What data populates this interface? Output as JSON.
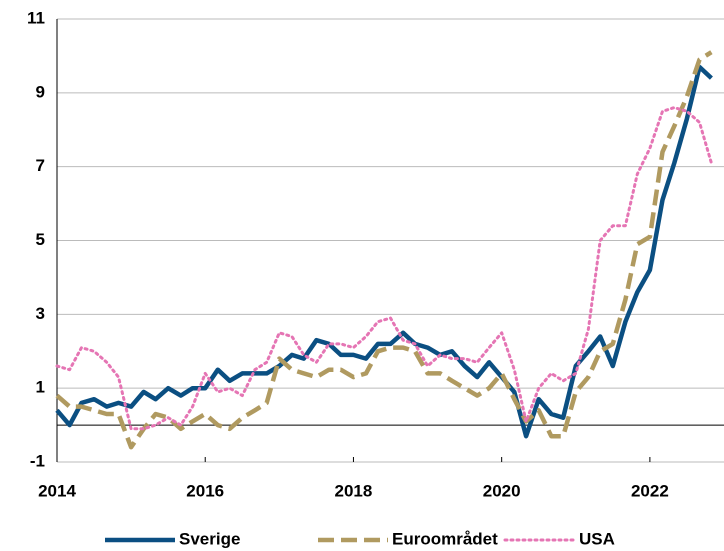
{
  "chart_data": {
    "type": "line",
    "x": [
      2014,
      2014.17,
      2014.33,
      2014.5,
      2014.67,
      2014.83,
      2015,
      2015.17,
      2015.33,
      2015.5,
      2015.67,
      2015.83,
      2016,
      2016.17,
      2016.33,
      2016.5,
      2016.67,
      2016.83,
      2017,
      2017.17,
      2017.33,
      2017.5,
      2017.67,
      2017.83,
      2018,
      2018.17,
      2018.33,
      2018.5,
      2018.67,
      2018.83,
      2019,
      2019.17,
      2019.33,
      2019.5,
      2019.67,
      2019.83,
      2020,
      2020.17,
      2020.33,
      2020.5,
      2020.67,
      2020.83,
      2021,
      2021.17,
      2021.33,
      2021.5,
      2021.67,
      2021.83,
      2022,
      2022.17,
      2022.33,
      2022.5,
      2022.67,
      2022.83
    ],
    "series": [
      {
        "name": "Sverige",
        "color": "#0b4f82",
        "style": "solid",
        "values": [
          0.4,
          0.0,
          0.6,
          0.7,
          0.5,
          0.6,
          0.5,
          0.9,
          0.7,
          1.0,
          0.8,
          1.0,
          1.0,
          1.5,
          1.2,
          1.4,
          1.4,
          1.4,
          1.6,
          1.9,
          1.8,
          2.3,
          2.2,
          1.9,
          1.9,
          1.8,
          2.2,
          2.2,
          2.5,
          2.2,
          2.1,
          1.9,
          2.0,
          1.6,
          1.3,
          1.7,
          1.3,
          0.9,
          -0.3,
          0.7,
          0.3,
          0.2,
          1.6,
          2.0,
          2.4,
          1.6,
          2.8,
          3.6,
          4.2,
          6.1,
          7.1,
          8.3,
          9.7,
          9.4
        ]
      },
      {
        "name": "Euroområdet",
        "color": "#b09a60",
        "style": "dashed",
        "values": [
          0.8,
          0.5,
          0.5,
          0.4,
          0.3,
          0.3,
          -0.6,
          -0.1,
          0.3,
          0.2,
          -0.1,
          0.1,
          0.3,
          0.0,
          -0.1,
          0.2,
          0.4,
          0.6,
          1.8,
          1.5,
          1.4,
          1.3,
          1.5,
          1.5,
          1.3,
          1.4,
          2.0,
          2.1,
          2.1,
          2.0,
          1.4,
          1.4,
          1.2,
          1.0,
          0.8,
          1.0,
          1.4,
          0.7,
          0.1,
          0.4,
          -0.3,
          -0.3,
          0.9,
          1.3,
          2.0,
          2.2,
          3.4,
          4.9,
          5.1,
          7.4,
          8.1,
          8.9,
          9.9,
          10.1
        ]
      },
      {
        "name": "USA",
        "color": "#e575b4",
        "style": "dotted",
        "values": [
          1.6,
          1.5,
          2.1,
          2.0,
          1.7,
          1.3,
          -0.1,
          -0.1,
          0.0,
          0.2,
          0.0,
          0.5,
          1.4,
          0.9,
          1.0,
          0.8,
          1.5,
          1.7,
          2.5,
          2.4,
          1.9,
          1.7,
          2.2,
          2.2,
          2.1,
          2.4,
          2.8,
          2.9,
          2.3,
          2.2,
          1.6,
          1.9,
          1.8,
          1.8,
          1.7,
          2.1,
          2.5,
          1.5,
          0.1,
          1.0,
          1.4,
          1.2,
          1.4,
          2.6,
          5.0,
          5.4,
          5.4,
          6.8,
          7.5,
          8.5,
          8.6,
          8.5,
          8.2,
          7.1
        ]
      }
    ],
    "xlim": [
      2014,
      2023
    ],
    "xticks": [
      2014,
      2016,
      2018,
      2020,
      2022
    ],
    "ylim": [
      -1,
      11
    ],
    "yticks": [
      -1,
      1,
      3,
      5,
      7,
      9,
      11
    ],
    "grid": true,
    "zero_line": true,
    "legend": "bottom"
  }
}
